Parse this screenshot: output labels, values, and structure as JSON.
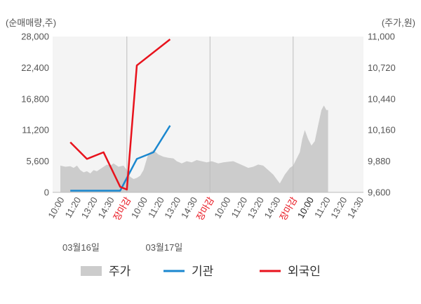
{
  "chart_data": {
    "type": "line",
    "left_axis_label": "(순매매량,주)",
    "right_axis_label": "(주가,원)",
    "y_left_ticks": [
      "28,000",
      "22,400",
      "16,800",
      "11,200",
      "5,600",
      "0"
    ],
    "y_right_ticks": [
      "11,000",
      "10,720",
      "10,440",
      "10,160",
      "9,880",
      "9,600"
    ],
    "y_left_range": [
      0,
      28000
    ],
    "y_right_range": [
      9600,
      11000
    ],
    "x_ticks": [
      {
        "label": "10:00",
        "color": "#555555"
      },
      {
        "label": "11:20",
        "color": "#555555"
      },
      {
        "label": "13:20",
        "color": "#555555"
      },
      {
        "label": "14:30",
        "color": "#555555"
      },
      {
        "label": "장마감",
        "color": "#e8121c"
      },
      {
        "label": "10:00",
        "color": "#555555"
      },
      {
        "label": "11:20",
        "color": "#555555"
      },
      {
        "label": "13:20",
        "color": "#555555"
      },
      {
        "label": "14:30",
        "color": "#555555"
      },
      {
        "label": "장마감",
        "color": "#e8121c"
      },
      {
        "label": "10:00",
        "color": "#555555"
      },
      {
        "label": "11:20",
        "color": "#555555"
      },
      {
        "label": "13:20",
        "color": "#555555"
      },
      {
        "label": "14:30",
        "color": "#555555"
      },
      {
        "label": "장마감",
        "color": "#e8121c"
      },
      {
        "label": "10:00",
        "color": "#222222"
      },
      {
        "label": "11:20",
        "color": "#555555"
      },
      {
        "label": "13:20",
        "color": "#555555"
      },
      {
        "label": "14:30",
        "color": "#555555"
      }
    ],
    "date_labels": [
      {
        "label": "03월16일",
        "at_tick": 2
      },
      {
        "label": "03월17일",
        "at_tick": 7
      }
    ],
    "session_dividers": [
      4,
      9,
      14
    ],
    "series": [
      {
        "name": "기관",
        "color": "#1a87cf",
        "axis": "left",
        "points": [
          [
            0.6,
            300
          ],
          [
            1.6,
            300
          ],
          [
            2.6,
            300
          ],
          [
            3.6,
            300
          ],
          [
            4.6,
            6000
          ],
          [
            5.6,
            7200
          ],
          [
            6.6,
            12000
          ]
        ]
      },
      {
        "name": "외국인",
        "color": "#e8121c",
        "axis": "left",
        "points": [
          [
            0.6,
            9000
          ],
          [
            1.6,
            6000
          ],
          [
            2.6,
            7200
          ],
          [
            3.6,
            1000
          ],
          [
            4.0,
            500
          ],
          [
            4.6,
            22800
          ],
          [
            6.6,
            27500
          ]
        ]
      },
      {
        "name": "주가",
        "color": "#cccccc",
        "axis": "right",
        "type": "area",
        "points": [
          [
            0.0,
            9840
          ],
          [
            0.3,
            9830
          ],
          [
            0.6,
            9835
          ],
          [
            0.8,
            9820
          ],
          [
            1.0,
            9840
          ],
          [
            1.2,
            9800
          ],
          [
            1.4,
            9780
          ],
          [
            1.6,
            9790
          ],
          [
            1.8,
            9770
          ],
          [
            2.0,
            9800
          ],
          [
            2.2,
            9790
          ],
          [
            2.5,
            9820
          ],
          [
            2.8,
            9850
          ],
          [
            3.0,
            9840
          ],
          [
            3.2,
            9860
          ],
          [
            3.5,
            9830
          ],
          [
            3.8,
            9840
          ],
          [
            4.0,
            9800
          ],
          [
            4.2,
            9740
          ],
          [
            4.4,
            9720
          ],
          [
            4.6,
            9730
          ],
          [
            4.8,
            9750
          ],
          [
            5.0,
            9800
          ],
          [
            5.3,
            9950
          ],
          [
            5.6,
            9980
          ],
          [
            5.9,
            9940
          ],
          [
            6.2,
            9920
          ],
          [
            6.5,
            9910
          ],
          [
            6.8,
            9905
          ],
          [
            7.0,
            9880
          ],
          [
            7.3,
            9860
          ],
          [
            7.6,
            9880
          ],
          [
            7.9,
            9870
          ],
          [
            8.2,
            9890
          ],
          [
            8.5,
            9880
          ],
          [
            8.8,
            9870
          ],
          [
            9.1,
            9880
          ],
          [
            9.5,
            9860
          ],
          [
            9.8,
            9870
          ],
          [
            10.1,
            9875
          ],
          [
            10.4,
            9880
          ],
          [
            10.7,
            9860
          ],
          [
            11.0,
            9840
          ],
          [
            11.3,
            9820
          ],
          [
            11.6,
            9830
          ],
          [
            11.9,
            9850
          ],
          [
            12.2,
            9840
          ],
          [
            12.5,
            9800
          ],
          [
            12.8,
            9760
          ],
          [
            13.0,
            9720
          ],
          [
            13.2,
            9680
          ],
          [
            13.5,
            9760
          ],
          [
            13.8,
            9820
          ],
          [
            14.0,
            9840
          ],
          [
            14.2,
            9900
          ],
          [
            14.4,
            9960
          ],
          [
            14.55,
            10080
          ],
          [
            14.7,
            10160
          ],
          [
            14.9,
            10080
          ],
          [
            15.1,
            10020
          ],
          [
            15.3,
            10060
          ],
          [
            15.5,
            10200
          ],
          [
            15.7,
            10340
          ],
          [
            15.85,
            10380
          ],
          [
            16.0,
            10340
          ],
          [
            16.1,
            10340
          ]
        ]
      }
    ],
    "legend": [
      {
        "name": "주가",
        "color": "#cccccc",
        "kind": "area"
      },
      {
        "name": "기관",
        "color": "#1a87cf",
        "kind": "line"
      },
      {
        "name": "외국인",
        "color": "#e8121c",
        "kind": "line"
      }
    ],
    "grid": "vertical-session-dividers",
    "legend_position": "bottom"
  }
}
